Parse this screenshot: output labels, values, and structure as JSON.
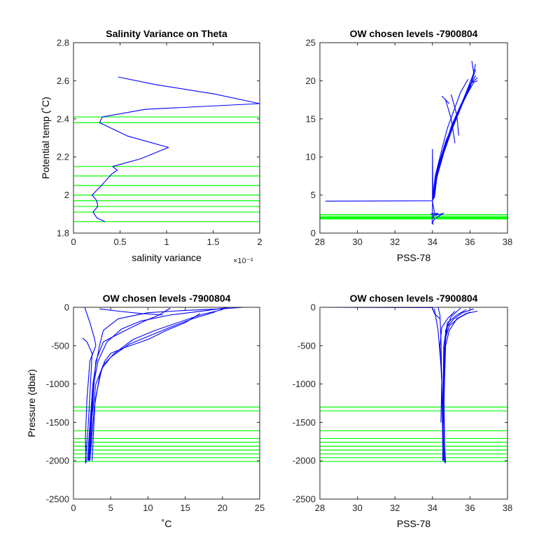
{
  "colors": {
    "profile": "#0000ff",
    "chosen_levels": "#00ff00",
    "axes": "#262626"
  },
  "chart_data": [
    {
      "type": "line",
      "title": "Salinity Variance on Theta",
      "xlabel": "salinity variance",
      "x_exponent": "×10⁻³",
      "ylabel": "Potential temp (˚C)",
      "xlim": [
        0,
        2
      ],
      "ylim": [
        1.8,
        2.8
      ],
      "xticks": [
        0,
        0.5,
        1,
        1.5,
        2
      ],
      "xticklabels": [
        "0",
        "0.5",
        "1",
        "1.5",
        "2"
      ],
      "yticks": [
        1.8,
        2,
        2.2,
        2.4,
        2.6,
        2.8
      ],
      "yticklabels": [
        "1.8",
        "2",
        "2.2",
        "2.4",
        "2.6",
        "2.8"
      ],
      "series": [
        {
          "x": [
            0.48,
            0.88,
            1.52,
            2.0,
            0.77,
            0.31,
            0.28,
            0.58,
            1.02,
            0.72,
            0.42,
            0.47,
            0.41,
            0.3,
            0.2,
            0.25,
            0.26,
            0.21,
            0.25,
            0.34
          ],
          "y": [
            2.62,
            2.58,
            2.53,
            2.48,
            2.45,
            2.41,
            2.38,
            2.31,
            2.25,
            2.19,
            2.15,
            2.13,
            2.11,
            2.05,
            2.0,
            1.97,
            1.94,
            1.91,
            1.88,
            1.86
          ]
        }
      ],
      "hlines": [
        2.41,
        2.38,
        2.15,
        2.1,
        2.05,
        2.0,
        1.97,
        1.94,
        1.91,
        1.86
      ]
    },
    {
      "type": "line",
      "title": "OW chosen levels -7900804",
      "xlabel": "PSS-78",
      "ylabel": "",
      "xlim": [
        28,
        38
      ],
      "ylim": [
        0,
        25
      ],
      "xticks": [
        28,
        30,
        32,
        34,
        36,
        38
      ],
      "xticklabels": [
        "28",
        "30",
        "32",
        "34",
        "36",
        "38"
      ],
      "yticks": [
        0,
        5,
        10,
        15,
        20,
        25
      ],
      "yticklabels": [
        "0",
        "5",
        "10",
        "15",
        "20",
        "25"
      ],
      "series": [
        {
          "x": [
            28.3,
            34.0,
            34.05,
            34.2,
            34.7,
            35.3,
            35.8,
            36.1,
            36.3
          ],
          "y": [
            4.2,
            4.25,
            5.0,
            8.0,
            12.0,
            15.5,
            18.0,
            20.0,
            21.5
          ]
        },
        {
          "x": [
            34.0,
            34.1,
            34.4,
            34.9,
            35.4,
            35.9,
            36.3
          ],
          "y": [
            4.3,
            6.5,
            9.5,
            13.0,
            16.0,
            18.8,
            20.7
          ]
        },
        {
          "x": [
            34.05,
            34.2,
            34.6,
            35.1,
            35.6,
            36.0,
            36.4
          ],
          "y": [
            4.4,
            7.0,
            10.5,
            14.0,
            17.0,
            19.5,
            20.4
          ]
        },
        {
          "x": [
            34.0,
            34.15,
            34.5,
            34.8,
            35.2,
            35.5,
            35.9
          ],
          "y": [
            4.5,
            7.5,
            11.0,
            13.8,
            16.5,
            18.5,
            20.2
          ]
        },
        {
          "x": [
            34.1,
            34.3,
            34.8,
            35.3,
            35.8,
            36.2,
            36.1
          ],
          "y": [
            4.6,
            8.5,
            12.5,
            15.5,
            18.5,
            21.0,
            22.6
          ]
        },
        {
          "x": [
            34.0,
            34.2,
            34.7,
            35.0,
            35.5,
            36.0,
            36.3
          ],
          "y": [
            4.4,
            8.0,
            11.5,
            14.0,
            16.8,
            19.0,
            22.2
          ]
        },
        {
          "x": [
            34.05,
            34.25,
            34.6,
            35.2,
            35.7,
            36.2,
            36.4
          ],
          "y": [
            4.5,
            7.8,
            10.8,
            14.6,
            17.6,
            19.8,
            20.0
          ]
        },
        {
          "x": [
            34.0,
            34.0,
            34.02,
            33.98
          ],
          "y": [
            4.2,
            11.0,
            6.0,
            1.2
          ]
        },
        {
          "x": [
            34.0,
            34.05,
            34.1,
            34.05,
            34.1,
            34.0,
            34.05
          ],
          "y": [
            4.2,
            3.5,
            2.8,
            2.2,
            1.8,
            1.4,
            1.1
          ]
        },
        {
          "x": [
            33.9,
            34.3,
            34.1,
            34.6,
            34.2,
            34.4
          ],
          "y": [
            2.5,
            2.6,
            2.3,
            2.6,
            2.0,
            2.3
          ]
        },
        {
          "x": [
            34.7,
            35.0,
            35.2
          ],
          "y": [
            17.5,
            15.0,
            11.8
          ]
        },
        {
          "x": [
            35.0,
            35.3,
            35.4
          ],
          "y": [
            18.2,
            15.5,
            12.8
          ]
        },
        {
          "x": [
            34.5,
            34.9
          ],
          "y": [
            18.0,
            17.0
          ]
        }
      ],
      "hlines": [
        2.41,
        2.38,
        2.15,
        2.1,
        2.05,
        2.0,
        1.97,
        1.94,
        1.91,
        1.86
      ]
    },
    {
      "type": "line",
      "title": "OW chosen levels -7900804",
      "xlabel": "˚C",
      "ylabel": "Pressure (dbar)",
      "xlim": [
        0,
        25
      ],
      "ylim": [
        -2500,
        0
      ],
      "xticks": [
        0,
        5,
        10,
        15,
        20,
        25
      ],
      "xticklabels": [
        "0",
        "5",
        "10",
        "15",
        "20",
        "25"
      ],
      "yticks": [
        -2500,
        -2000,
        -1500,
        -1000,
        -500,
        0
      ],
      "yticklabels": [
        "-2500",
        "-2000",
        "-1500",
        "-1000",
        "-500",
        "0"
      ],
      "series": [
        {
          "x": [
            22.8,
            20.0,
            15.0,
            10.0,
            6.0,
            4.0,
            3.5,
            3.0,
            2.6,
            2.3,
            2.0,
            1.9
          ],
          "y": [
            0,
            -20,
            -40,
            -70,
            -150,
            -300,
            -500,
            -750,
            -1000,
            -1400,
            -1800,
            -2000
          ]
        },
        {
          "x": [
            21.0,
            18.0,
            13.0,
            9.0,
            6.5,
            4.5,
            3.3,
            2.7,
            2.3,
            2.0
          ],
          "y": [
            0,
            -40,
            -100,
            -180,
            -280,
            -450,
            -700,
            -1000,
            -1500,
            -2000
          ]
        },
        {
          "x": [
            20.0,
            17.0,
            14.0,
            11.0,
            8.0,
            5.5,
            4.0,
            3.0,
            2.4,
            2.1
          ],
          "y": [
            -30,
            -100,
            -200,
            -300,
            -420,
            -600,
            -750,
            -1000,
            -1500,
            -2000
          ]
        },
        {
          "x": [
            19.0,
            16.0,
            13.0,
            10.0,
            7.5,
            5.0,
            3.8,
            2.9,
            2.5
          ],
          "y": [
            -60,
            -150,
            -260,
            -380,
            -480,
            -650,
            -800,
            -1200,
            -2000
          ]
        },
        {
          "x": [
            17.0,
            15.0,
            12.5,
            10.0,
            7.0,
            5.0,
            4.2,
            3.5,
            2.8,
            2.2
          ],
          "y": [
            -80,
            -200,
            -300,
            -420,
            -520,
            -600,
            -700,
            -900,
            -1300,
            -2000
          ]
        },
        {
          "x": [
            13.0,
            11.5,
            9.5,
            7.0,
            4.0,
            3.0,
            2.6,
            2.2
          ],
          "y": [
            -10,
            -100,
            -180,
            -300,
            -450,
            -700,
            -1200,
            -2000
          ]
        },
        {
          "x": [
            3.5,
            6.0,
            9.0,
            12.0
          ],
          "y": [
            -20,
            -50,
            -80,
            -100
          ]
        },
        {
          "x": [
            1.5,
            2.2,
            2.8,
            3.0,
            2.2,
            1.8,
            1.6,
            1.7
          ],
          "y": [
            0,
            -200,
            -400,
            -500,
            -700,
            -1200,
            -1700,
            -2030
          ]
        },
        {
          "x": [
            1.2,
            1.8,
            2.5,
            2.0,
            1.6
          ],
          "y": [
            -400,
            -450,
            -600,
            -1500,
            -2030
          ]
        },
        {
          "x": [
            1.6,
            1.7,
            1.6,
            1.7,
            1.6
          ],
          "y": [
            -1800,
            -1900,
            -2000,
            -1950,
            -2030
          ]
        }
      ],
      "hlines": [
        -1300,
        -1350,
        -1610,
        -1710,
        -1760,
        -1810,
        -1860,
        -1910,
        -1960,
        -2010
      ]
    },
    {
      "type": "line",
      "title": "OW chosen levels -7900804",
      "xlabel": "PSS-78",
      "ylabel": "",
      "xlim": [
        28,
        38
      ],
      "ylim": [
        -2500,
        0
      ],
      "xticks": [
        28,
        30,
        32,
        34,
        36,
        38
      ],
      "xticklabels": [
        "28",
        "30",
        "32",
        "34",
        "36",
        "38"
      ],
      "yticks": [
        -2500,
        -2000,
        -1500,
        -1000,
        -500,
        0
      ],
      "yticklabels": [
        "-2500",
        "-2000",
        "-1500",
        "-1000",
        "-500",
        "0"
      ],
      "series": [
        {
          "x": [
            28.3,
            34.0,
            34.1,
            34.4
          ],
          "y": [
            0,
            -5,
            -80,
            -150
          ]
        },
        {
          "x": [
            36.4,
            35.8,
            35.3,
            34.9,
            34.7,
            34.65,
            34.6,
            34.65,
            34.7
          ],
          "y": [
            -50,
            -80,
            -150,
            -300,
            -500,
            -900,
            -1400,
            -1800,
            -2030
          ]
        },
        {
          "x": [
            36.2,
            35.6,
            35.1,
            34.8,
            34.6,
            34.55,
            34.6
          ],
          "y": [
            -20,
            -70,
            -160,
            -250,
            -600,
            -1300,
            -2000
          ]
        },
        {
          "x": [
            36.0,
            35.4,
            34.9,
            34.7,
            34.6,
            34.65
          ],
          "y": [
            -60,
            -140,
            -240,
            -400,
            -1000,
            -2000
          ]
        },
        {
          "x": [
            35.8,
            35.3,
            34.8,
            34.6,
            34.55
          ],
          "y": [
            -30,
            -100,
            -200,
            -500,
            -2000
          ]
        },
        {
          "x": [
            35.5,
            35.0,
            34.7,
            34.6,
            34.65
          ],
          "y": [
            -10,
            -120,
            -300,
            -800,
            -2030
          ]
        },
        {
          "x": [
            35.2,
            34.8,
            34.5,
            34.4,
            34.5,
            34.6
          ],
          "y": [
            -50,
            -150,
            -260,
            -500,
            -1000,
            -2000
          ]
        },
        {
          "x": [
            34.3,
            34.4,
            34.45,
            34.5,
            34.55
          ],
          "y": [
            0,
            -100,
            -400,
            -1000,
            -1800
          ]
        },
        {
          "x": [
            34.1,
            34.3,
            34.5,
            34.45
          ],
          "y": [
            -20,
            -300,
            -900,
            -1500
          ]
        }
      ],
      "hlines": [
        -1300,
        -1350,
        -1610,
        -1710,
        -1760,
        -1810,
        -1860,
        -1910,
        -1960,
        -2010
      ]
    }
  ]
}
